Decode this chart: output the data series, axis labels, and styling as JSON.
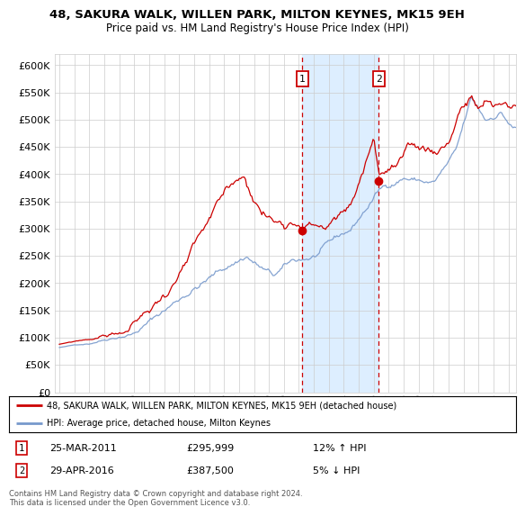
{
  "title": "48, SAKURA WALK, WILLEN PARK, MILTON KEYNES, MK15 9EH",
  "subtitle": "Price paid vs. HM Land Registry's House Price Index (HPI)",
  "legend_line1": "48, SAKURA WALK, WILLEN PARK, MILTON KEYNES, MK15 9EH (detached house)",
  "legend_line2": "HPI: Average price, detached house, Milton Keynes",
  "annotation1_date": "25-MAR-2011",
  "annotation1_price": "£295,999",
  "annotation1_hpi": "12% ↑ HPI",
  "annotation2_date": "29-APR-2016",
  "annotation2_price": "£387,500",
  "annotation2_hpi": "5% ↓ HPI",
  "vline1_year": 2011.23,
  "vline2_year": 2016.33,
  "dot1_x": 2011.23,
  "dot1_y": 295999,
  "dot2_x": 2016.33,
  "dot2_y": 387500,
  "ylim": [
    0,
    620000
  ],
  "xlim_start": 1994.7,
  "xlim_end": 2025.5,
  "red_color": "#cc0000",
  "blue_color": "#7799cc",
  "background_color": "#ffffff",
  "grid_color": "#cccccc",
  "shade_color": "#ddeeff",
  "footer": "Contains HM Land Registry data © Crown copyright and database right 2024.\nThis data is licensed under the Open Government Licence v3.0."
}
